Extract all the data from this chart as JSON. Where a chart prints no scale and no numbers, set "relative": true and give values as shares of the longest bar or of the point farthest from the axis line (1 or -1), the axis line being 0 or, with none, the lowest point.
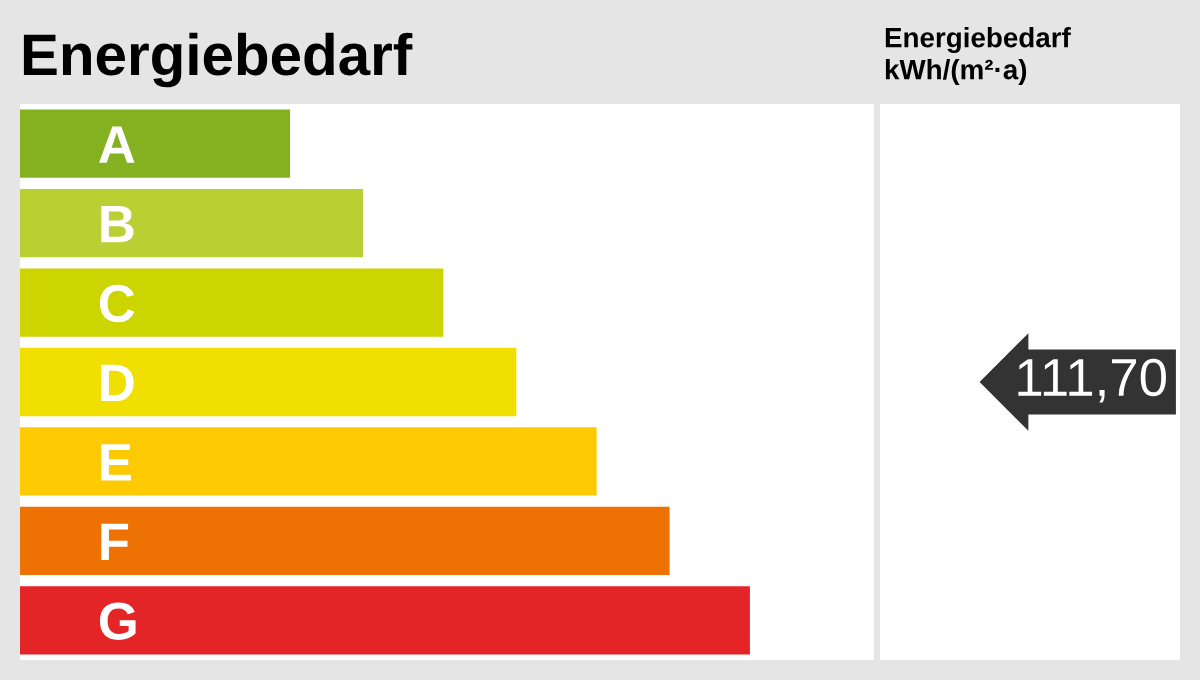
{
  "chart_data": {
    "type": "bar",
    "orientation": "horizontal",
    "relative": true,
    "title": "Energiebedarf",
    "categories": [
      "A",
      "B",
      "C",
      "D",
      "E",
      "F",
      "G"
    ],
    "values": [
      0.37,
      0.47,
      0.58,
      0.68,
      0.79,
      0.89,
      1
    ],
    "colors": [
      "#84b11f",
      "#b9d032",
      "#cdd500",
      "#f0df00",
      "#fdc900",
      "#ee7203",
      "#e42528"
    ],
    "annotations": [
      "Energiebedarf\nkWh/(m²·a)",
      "111,70"
    ],
    "tick_labels": "y",
    "grid": false,
    "legend": false
  }
}
